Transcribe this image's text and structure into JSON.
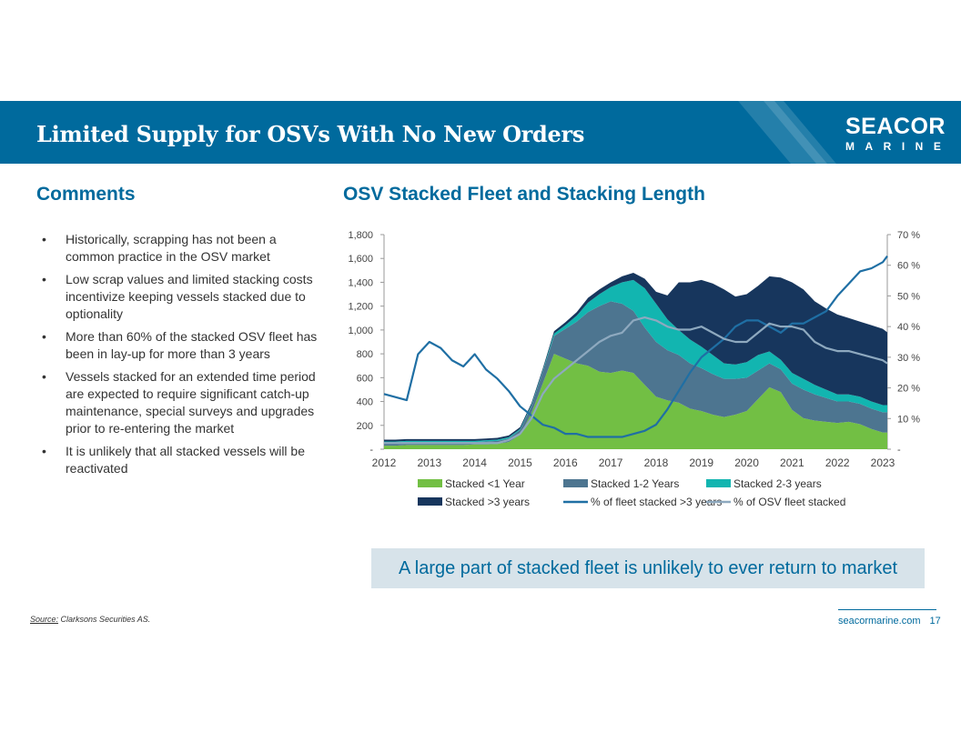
{
  "header": {
    "title": "Limited Supply for OSVs With No New Orders",
    "logo_line1": "SEACOR",
    "logo_line2": "MARINE"
  },
  "left": {
    "heading": "Comments",
    "bullets": [
      "Historically, scrapping has not been a common practice in the OSV market",
      "Low scrap values and limited stacking costs incentivize keeping vessels stacked due to optionality",
      "More than 60% of the stacked OSV fleet has been in lay-up for more than 3 years",
      "Vessels stacked for an extended time period are expected to require significant catch-up maintenance, special surveys and upgrades prior to re-entering the market",
      "It is unlikely that all stacked vessels will be reactivated"
    ],
    "bullet_symbol": "•"
  },
  "right": {
    "heading": "OSV Stacked Fleet and Stacking Length"
  },
  "callout": "A large part of stacked fleet is unlikely to ever return to market",
  "source": {
    "label": "Source:",
    "text": "Clarksons Securities AS."
  },
  "footer": {
    "site": "seacormarine.com",
    "page": "17"
  },
  "colors": {
    "brand": "#006a9d",
    "lt1": "#72bf44",
    "y12": "#4d7590",
    "y23": "#12b5b0",
    "gt3": "#17365d",
    "pct3": "#1f6fa4",
    "pctAll": "#8ea9bf"
  },
  "chart_data": {
    "type": "area",
    "title": "OSV Stacked Fleet and Stacking Length",
    "x": [
      2012.0,
      2012.25,
      2012.5,
      2012.75,
      2013.0,
      2013.25,
      2013.5,
      2013.75,
      2014.0,
      2014.25,
      2014.5,
      2014.75,
      2015.0,
      2015.25,
      2015.5,
      2015.75,
      2016.0,
      2016.25,
      2016.5,
      2016.75,
      2017.0,
      2017.25,
      2017.5,
      2017.75,
      2018.0,
      2018.25,
      2018.5,
      2018.75,
      2019.0,
      2019.25,
      2019.5,
      2019.75,
      2020.0,
      2020.25,
      2020.5,
      2020.75,
      2021.0,
      2021.25,
      2021.5,
      2021.75,
      2022.0,
      2022.25,
      2022.5,
      2022.75,
      2023.0,
      2023.1
    ],
    "x_ticks": [
      "2012",
      "2013",
      "2014",
      "2015",
      "2016",
      "2017",
      "2018",
      "2019",
      "2020",
      "2021",
      "2022",
      "2023"
    ],
    "y_left": {
      "range": [
        0,
        1800
      ],
      "ticks": [
        "-",
        "200",
        "400",
        "600",
        "800",
        "1,000",
        "1,200",
        "1,400",
        "1,600",
        "1,800"
      ]
    },
    "y_right": {
      "range": [
        0,
        70
      ],
      "ticks": [
        "-",
        "10 %",
        "20 %",
        "30 %",
        "40 %",
        "50 %",
        "60 %",
        "70 %"
      ]
    },
    "series": [
      {
        "name": "Stacked <1 Year",
        "kind": "area",
        "axis": "left",
        "values": [
          30,
          30,
          35,
          35,
          35,
          35,
          35,
          35,
          40,
          40,
          45,
          60,
          120,
          300,
          550,
          800,
          760,
          720,
          700,
          650,
          640,
          660,
          640,
          540,
          440,
          410,
          390,
          340,
          320,
          290,
          270,
          290,
          320,
          420,
          520,
          480,
          330,
          260,
          240,
          230,
          220,
          230,
          210,
          170,
          140,
          140
        ]
      },
      {
        "name": "Stacked 1-2 Years",
        "kind": "area",
        "axis": "left",
        "values": [
          25,
          25,
          25,
          25,
          25,
          25,
          25,
          25,
          20,
          25,
          25,
          30,
          40,
          60,
          100,
          150,
          250,
          350,
          450,
          550,
          600,
          560,
          520,
          480,
          460,
          420,
          400,
          380,
          360,
          340,
          320,
          300,
          280,
          240,
          200,
          190,
          220,
          240,
          220,
          200,
          180,
          170,
          170,
          170,
          170,
          170
        ]
      },
      {
        "name": "Stacked 2-3 years",
        "kind": "area",
        "axis": "left",
        "values": [
          10,
          10,
          10,
          10,
          10,
          10,
          10,
          10,
          10,
          10,
          10,
          10,
          10,
          10,
          10,
          20,
          30,
          50,
          80,
          100,
          120,
          180,
          260,
          330,
          320,
          260,
          210,
          200,
          180,
          160,
          130,
          120,
          130,
          130,
          100,
          80,
          90,
          90,
          80,
          70,
          60,
          60,
          60,
          60,
          60,
          60
        ]
      },
      {
        "name": "Stacked >3 years",
        "kind": "area",
        "axis": "left",
        "values": [
          15,
          15,
          15,
          15,
          15,
          15,
          15,
          15,
          15,
          15,
          15,
          15,
          15,
          15,
          15,
          20,
          25,
          30,
          40,
          40,
          40,
          50,
          60,
          80,
          100,
          200,
          400,
          480,
          560,
          600,
          620,
          570,
          570,
          580,
          630,
          690,
          760,
          750,
          700,
          680,
          670,
          640,
          630,
          640,
          640,
          610
        ]
      },
      {
        "name": "% of fleet stacked >3 years",
        "kind": "line",
        "axis": "right",
        "values": [
          18,
          17,
          16,
          31,
          35,
          33,
          29,
          27,
          31,
          26,
          23,
          19,
          14,
          11,
          8,
          7,
          5,
          5,
          4,
          4,
          4,
          4,
          5,
          6,
          8,
          13,
          19,
          25,
          30,
          33,
          36,
          40,
          42,
          42,
          40,
          38,
          41,
          41,
          43,
          45,
          50,
          54,
          58,
          59,
          61,
          63
        ]
      },
      {
        "name": "% of OSV fleet stacked",
        "kind": "line",
        "axis": "right",
        "values": [
          2,
          2,
          2,
          2,
          2,
          2,
          2,
          2,
          2,
          2,
          2,
          3,
          5,
          10,
          18,
          23,
          26,
          29,
          32,
          35,
          37,
          38,
          42,
          43,
          42,
          40,
          39,
          39,
          40,
          38,
          36,
          35,
          35,
          38,
          41,
          40,
          40,
          39,
          35,
          33,
          32,
          32,
          31,
          30,
          29,
          28
        ]
      }
    ],
    "legend": {
      "position": "bottom"
    }
  }
}
